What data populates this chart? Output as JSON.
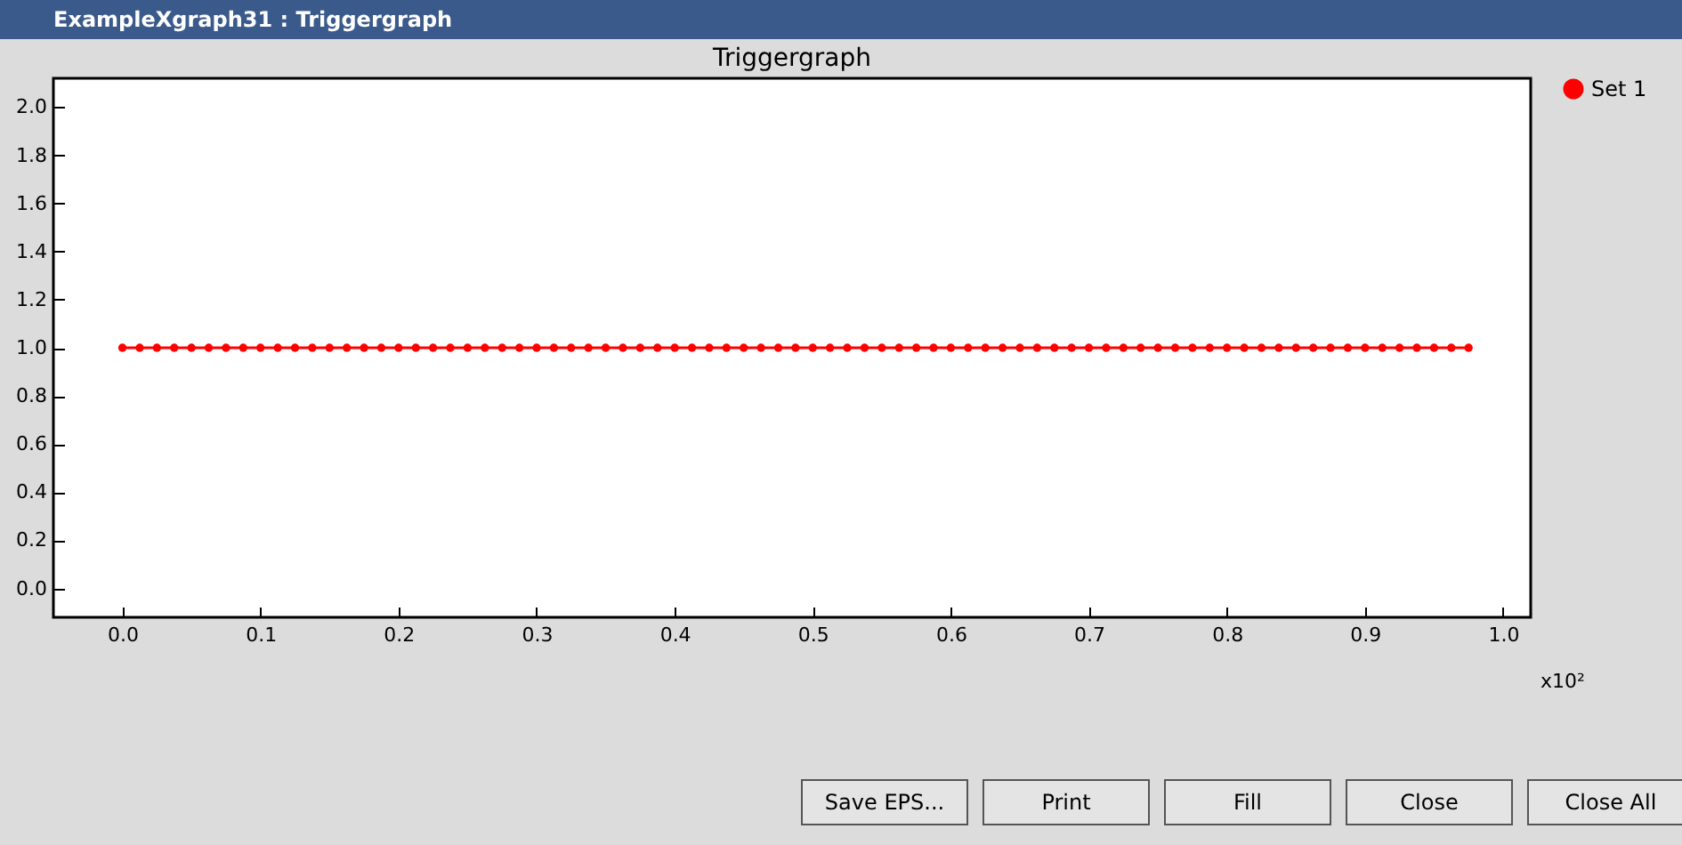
{
  "chart_data": {
    "type": "line",
    "title": "Triggergraph",
    "xlabel": "x10²",
    "x": [
      0,
      0.0125,
      0.025,
      0.0375,
      0.05,
      0.0625,
      0.075,
      0.0875,
      0.1,
      0.1125,
      0.125,
      0.1375,
      0.15,
      0.1625,
      0.175,
      0.1875,
      0.2,
      0.2125,
      0.225,
      0.2375,
      0.25,
      0.2625,
      0.275,
      0.2875,
      0.3,
      0.3125,
      0.325,
      0.3375,
      0.35,
      0.3625,
      0.375,
      0.3875,
      0.4,
      0.4125,
      0.425,
      0.4375,
      0.45,
      0.4625,
      0.475,
      0.4875,
      0.5,
      0.5125,
      0.525,
      0.5375,
      0.55,
      0.5625,
      0.575,
      0.5875,
      0.6,
      0.6125,
      0.625,
      0.6375,
      0.65,
      0.6625,
      0.675,
      0.6875,
      0.7,
      0.7125,
      0.725,
      0.7375,
      0.75,
      0.7625,
      0.775,
      0.7875,
      0.8,
      0.8125,
      0.825,
      0.8375,
      0.85,
      0.8625,
      0.875,
      0.8875,
      0.9,
      0.9125,
      0.925,
      0.9375,
      0.95,
      0.9625,
      0.975
    ],
    "series": [
      {
        "name": "Set 1",
        "color": "#ff0000",
        "values": [
          1,
          1,
          1,
          1,
          1,
          1,
          1,
          1,
          1,
          1,
          1,
          1,
          1,
          1,
          1,
          1,
          1,
          1,
          1,
          1,
          1,
          1,
          1,
          1,
          1,
          1,
          1,
          1,
          1,
          1,
          1,
          1,
          1,
          1,
          1,
          1,
          1,
          1,
          1,
          1,
          1,
          1,
          1,
          1,
          1,
          1,
          1,
          1,
          1,
          1,
          1,
          1,
          1,
          1,
          1,
          1,
          1,
          1,
          1,
          1,
          1,
          1,
          1,
          1,
          1,
          1,
          1,
          1,
          1,
          1,
          1,
          1,
          1,
          1,
          1,
          1,
          1,
          1,
          1
        ]
      }
    ],
    "xlim": [
      -0.05,
      1.02
    ],
    "xticks": [
      {
        "value": 0,
        "label": "0.0"
      },
      {
        "value": 0.1,
        "label": "0.1"
      },
      {
        "value": 0.2,
        "label": "0.2"
      },
      {
        "value": 0.3,
        "label": "0.3"
      },
      {
        "value": 0.4,
        "label": "0.4"
      },
      {
        "value": 0.5,
        "label": "0.5"
      },
      {
        "value": 0.6,
        "label": "0.6"
      },
      {
        "value": 0.7,
        "label": "0.7"
      },
      {
        "value": 0.8,
        "label": "0.8"
      },
      {
        "value": 0.9,
        "label": "0.9"
      },
      {
        "value": 1,
        "label": "1.0"
      }
    ],
    "ylim": [
      -0.12,
      2.12
    ],
    "yticks": [
      {
        "value": 0,
        "label": "0.0"
      },
      {
        "value": 0.2,
        "label": "0.2"
      },
      {
        "value": 0.4,
        "label": "0.4"
      },
      {
        "value": 0.6,
        "label": "0.6"
      },
      {
        "value": 0.8,
        "label": "0.8"
      },
      {
        "value": 1,
        "label": "1.0"
      },
      {
        "value": 1.2,
        "label": "1.2"
      },
      {
        "value": 1.4,
        "label": "1.4"
      },
      {
        "value": 1.6,
        "label": "1.6"
      },
      {
        "value": 1.8,
        "label": "1.8"
      },
      {
        "value": 2,
        "label": "2.0"
      }
    ],
    "marker": "circle",
    "line_style": "solid",
    "grid": false,
    "legend": "top right",
    "annotations": [
      "ExampleXgraph31 : Triggergraph",
      "Save EPS...",
      "Print",
      "Fill",
      "Close",
      "Close All"
    ]
  }
}
